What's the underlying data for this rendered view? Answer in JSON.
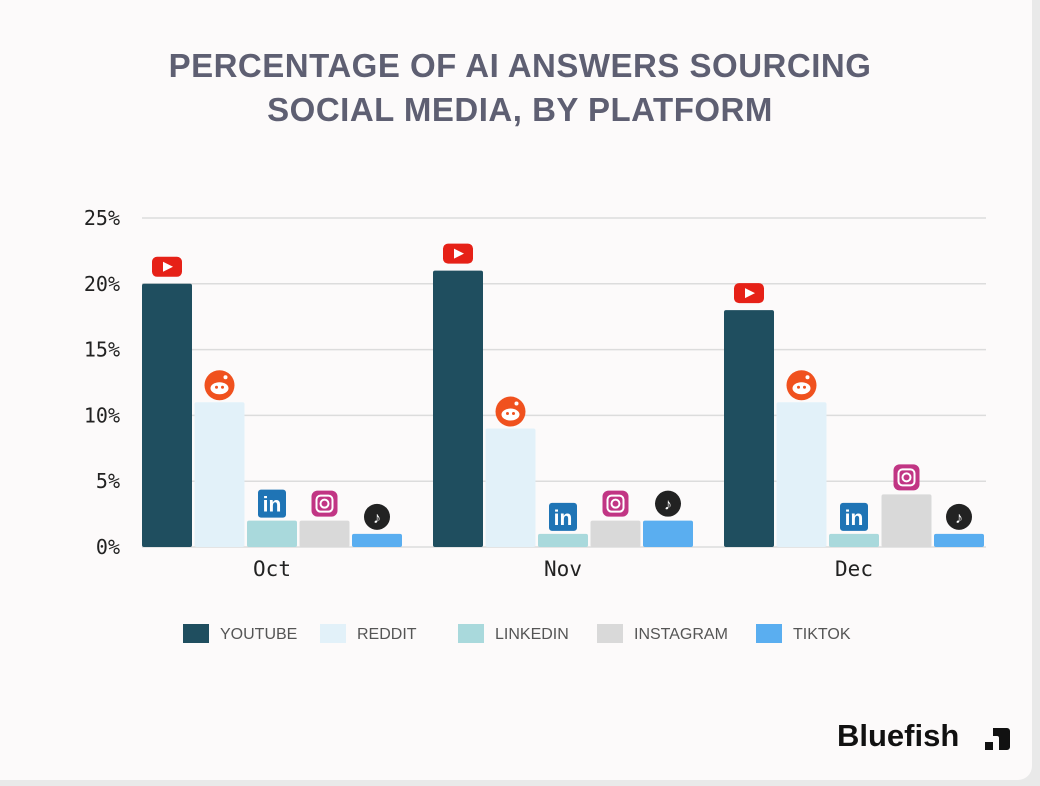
{
  "chart_data": {
    "type": "bar",
    "title": "PERCENTAGE OF AI ANSWERS SOURCING SOCIAL MEDIA, BY PLATFORM",
    "title_lines": [
      "PERCENTAGE OF AI ANSWERS SOURCING",
      "SOCIAL MEDIA, BY PLATFORM"
    ],
    "categories": [
      "Oct",
      "Nov",
      "Dec"
    ],
    "ylim": [
      0,
      25
    ],
    "yticks": [
      "0%",
      "5%",
      "10%",
      "15%",
      "20%",
      "25%"
    ],
    "ytick_values": [
      0,
      5,
      10,
      15,
      20,
      25
    ],
    "grid": true,
    "legend_position": "bottom",
    "series": [
      {
        "name": "YOUTUBE",
        "color": "#1f4e5f",
        "icon": "youtube-icon",
        "values": [
          20,
          21,
          18
        ]
      },
      {
        "name": "REDDIT",
        "color": "#e2f1f9",
        "icon": "reddit-icon",
        "values": [
          11,
          9,
          11
        ]
      },
      {
        "name": "LINKEDIN",
        "color": "#a9d9dc",
        "icon": "linkedin-icon",
        "values": [
          2,
          1,
          1
        ]
      },
      {
        "name": "INSTAGRAM",
        "color": "#d9d9d9",
        "icon": "instagram-icon",
        "values": [
          2,
          2,
          4
        ]
      },
      {
        "name": "TIKTOK",
        "color": "#5aaef0",
        "icon": "tiktok-icon",
        "values": [
          1,
          2,
          1
        ]
      }
    ]
  },
  "brand": "Bluefish"
}
